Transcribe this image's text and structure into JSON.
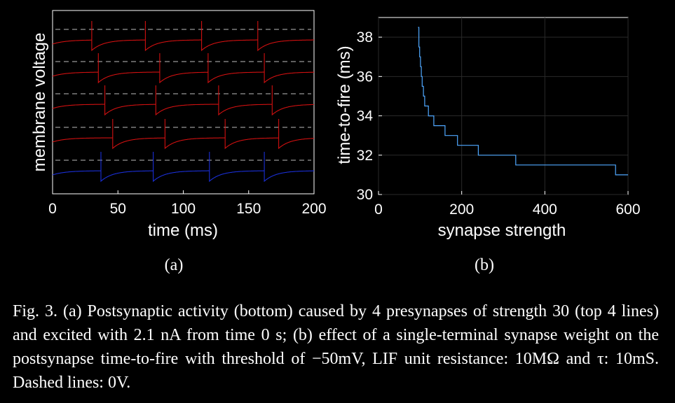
{
  "chart_data": [
    {
      "type": "line",
      "panel_label": "(a)",
      "xlabel": "time (ms)",
      "ylabel": "membrane voltage",
      "xlim": [
        0,
        200
      ],
      "xticks": [
        "0",
        "50",
        "100",
        "150",
        "200"
      ],
      "grid": false,
      "dashed_reference": "0V",
      "series": [
        {
          "role": "presynapse",
          "color": "#d01010",
          "spike_times_ms": [
            30,
            71,
            114,
            157
          ]
        },
        {
          "role": "presynapse",
          "color": "#d01010",
          "spike_times_ms": [
            35,
            82,
            119,
            162
          ]
        },
        {
          "role": "presynapse",
          "color": "#d01010",
          "spike_times_ms": [
            40,
            79,
            127,
            168
          ]
        },
        {
          "role": "presynapse",
          "color": "#d01010",
          "spike_times_ms": [
            46,
            86,
            132,
            173
          ]
        },
        {
          "role": "postsynapse",
          "color": "#1a2fd6",
          "spike_times_ms": [
            37,
            77,
            120,
            162
          ]
        }
      ]
    },
    {
      "type": "line",
      "panel_label": "(b)",
      "xlabel": "synapse strength",
      "ylabel": "time-to-fire (ms)",
      "xlim": [
        0,
        600
      ],
      "ylim": [
        30,
        39
      ],
      "xticks": [
        "0",
        "200",
        "400",
        "600"
      ],
      "yticks": [
        "30",
        "32",
        "34",
        "36",
        "38"
      ],
      "grid": true,
      "color": "#4fa8ff",
      "series": [
        {
          "x": [
            95,
            97,
            99,
            101,
            103,
            105,
            108,
            111,
            115,
            120,
            126,
            133,
            145,
            160,
            190,
            240,
            330,
            570,
            600
          ],
          "y": [
            38.5,
            37.5,
            37.0,
            36.5,
            36.0,
            35.5,
            35.0,
            34.5,
            34.5,
            34.0,
            34.0,
            33.5,
            33.5,
            33.0,
            32.5,
            32.0,
            31.5,
            31.0,
            31.0
          ]
        }
      ]
    }
  ],
  "figure": {
    "label_a": "(a)",
    "label_b": "(b)",
    "caption": "Fig. 3.   (a) Postsynaptic activity (bottom) caused by 4 presynapses of strength 30 (top 4 lines) and excited with 2.1 nA from time 0 s; (b) effect of a single-terminal synapse weight on the postsynapse time-to-fire with threshold of −50mV, LIF unit resistance: 10MΩ and τ: 10mS. Dashed lines: 0V."
  }
}
